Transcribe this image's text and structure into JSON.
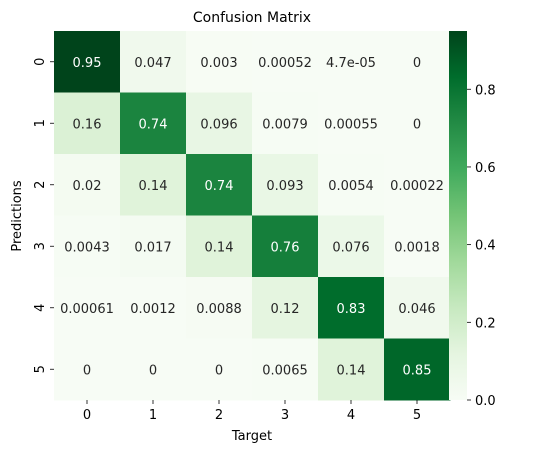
{
  "chart_data": {
    "type": "heatmap",
    "title": "Confusion Matrix",
    "xlabel": "Target",
    "ylabel": "Predictions",
    "x_categories": [
      "0",
      "1",
      "2",
      "3",
      "4",
      "5"
    ],
    "y_categories": [
      "0",
      "1",
      "2",
      "3",
      "4",
      "5"
    ],
    "values": [
      [
        0.95,
        0.047,
        0.003,
        0.00052,
        4.7e-05,
        0
      ],
      [
        0.16,
        0.74,
        0.096,
        0.0079,
        0.00055,
        0
      ],
      [
        0.02,
        0.14,
        0.74,
        0.093,
        0.0054,
        0.00022
      ],
      [
        0.0043,
        0.017,
        0.14,
        0.76,
        0.076,
        0.0018
      ],
      [
        0.00061,
        0.0012,
        0.0088,
        0.12,
        0.83,
        0.046
      ],
      [
        0,
        0,
        0,
        0.0065,
        0.14,
        0.85
      ]
    ],
    "value_labels": [
      [
        "0.95",
        "0.047",
        "0.003",
        "0.00052",
        "4.7e-05",
        "0"
      ],
      [
        "0.16",
        "0.74",
        "0.096",
        "0.0079",
        "0.00055",
        "0"
      ],
      [
        "0.02",
        "0.14",
        "0.74",
        "0.093",
        "0.0054",
        "0.00022"
      ],
      [
        "0.0043",
        "0.017",
        "0.14",
        "0.76",
        "0.076",
        "0.0018"
      ],
      [
        "0.00061",
        "0.0012",
        "0.0088",
        "0.12",
        "0.83",
        "0.046"
      ],
      [
        "0",
        "0",
        "0",
        "0.0065",
        "0.14",
        "0.85"
      ]
    ],
    "colormap": "Greens",
    "color_range": [
      0,
      0.95
    ],
    "colorbar_ticks": [
      "0.0",
      "0.2",
      "0.4",
      "0.6",
      "0.8"
    ],
    "colorbar_tick_values": [
      0,
      0.2,
      0.4,
      0.6,
      0.8
    ]
  }
}
